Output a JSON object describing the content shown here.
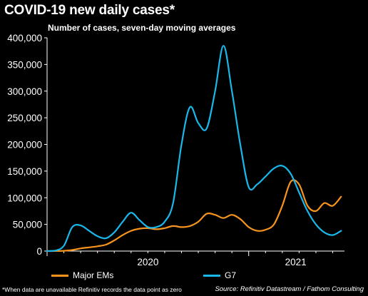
{
  "chart_data": {
    "type": "line",
    "title": "COVID-19 new daily cases*",
    "subtitle": "Number of cases, seven-day moving averages",
    "xlabel": "",
    "ylabel": "",
    "ylim": [
      0,
      400000
    ],
    "yticks": [
      0,
      50000,
      100000,
      150000,
      200000,
      250000,
      300000,
      350000,
      400000
    ],
    "ytick_labels": [
      "0",
      "50,000",
      "100,000",
      "150,000",
      "200,000",
      "250,000",
      "300,000",
      "350,000",
      "400,000"
    ],
    "xlim": [
      "2020-01-01",
      "2021-06-21"
    ],
    "xtick_labels": [
      "2020",
      "2021"
    ],
    "x_unit": "months since 2020-01",
    "x": [
      0,
      0.5,
      1,
      1.5,
      2,
      2.5,
      3,
      3.5,
      4,
      4.5,
      5,
      5.5,
      6,
      6.5,
      7,
      7.5,
      8,
      8.5,
      9,
      9.5,
      10,
      10.5,
      11,
      11.5,
      12,
      12.5,
      13,
      13.5,
      14,
      14.5,
      15,
      15.5,
      16,
      16.5,
      17,
      17.5
    ],
    "series": [
      {
        "name": "Major EMs",
        "color": "#f7941d",
        "values": [
          0,
          100,
          500,
          2000,
          5000,
          7000,
          9000,
          12000,
          20000,
          30000,
          38000,
          42000,
          43000,
          41000,
          43000,
          47000,
          45000,
          47000,
          55000,
          70000,
          68000,
          62000,
          68000,
          60000,
          45000,
          38000,
          40000,
          50000,
          85000,
          130000,
          125000,
          85000,
          75000,
          90000,
          85000,
          102000
        ]
      },
      {
        "name": "G7",
        "color": "#1ab7ea",
        "values": [
          0,
          1000,
          10000,
          45000,
          48000,
          38000,
          28000,
          24000,
          35000,
          55000,
          72000,
          58000,
          45000,
          45000,
          55000,
          90000,
          200000,
          270000,
          240000,
          230000,
          300000,
          385000,
          300000,
          200000,
          120000,
          125000,
          140000,
          155000,
          160000,
          145000,
          110000,
          75000,
          50000,
          35000,
          30000,
          38000
        ]
      }
    ],
    "grid": false,
    "legend": "bottom"
  },
  "footnote": "*When data are unavailable Refinitiv records the data point as zero",
  "source": "Source: Refinitiv Datastream / Fathom Consulting",
  "colors": {
    "background": "#000000",
    "axis": "#ffffff",
    "text": "#ffffff"
  }
}
